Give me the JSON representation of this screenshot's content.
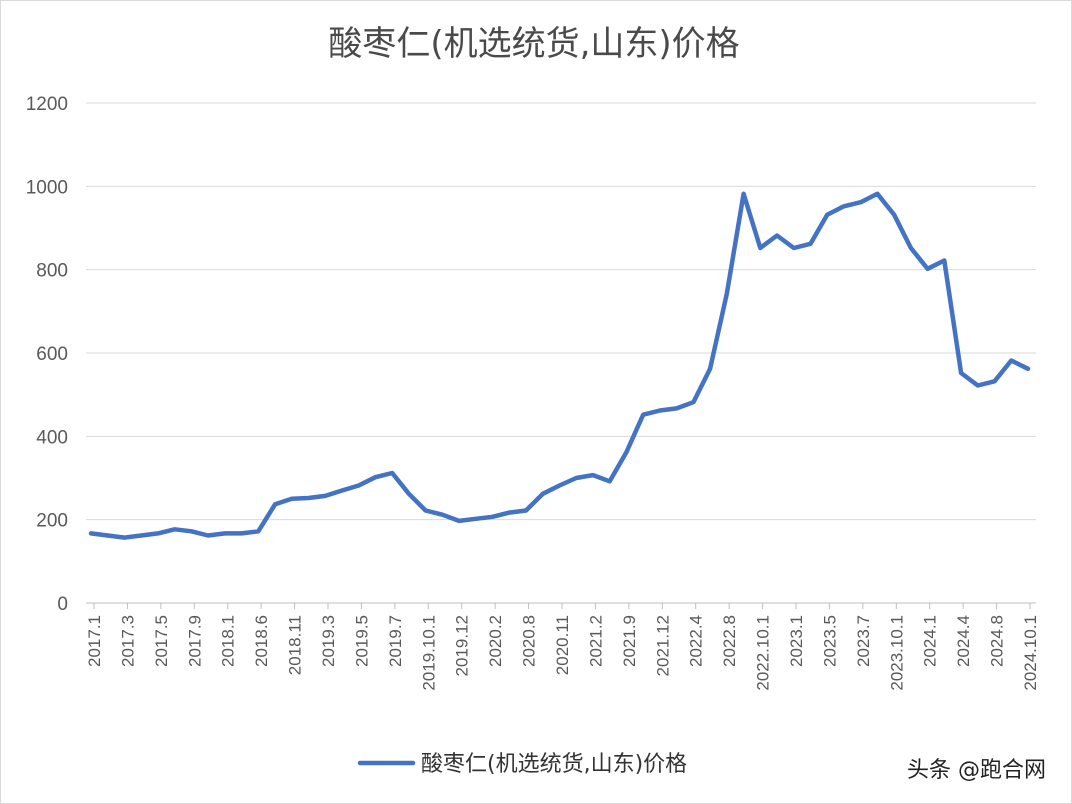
{
  "chart_data": {
    "type": "line",
    "title": "酸枣仁(机选统货,山东)价格",
    "ylim": [
      0,
      1200
    ],
    "yticks": [
      "0",
      "200",
      "400",
      "600",
      "800",
      "1000",
      "1200"
    ],
    "xtick_labels": [
      "2017.1",
      "2017.3",
      "2017.5",
      "2017.9",
      "2018.1",
      "2018.6",
      "2018.11",
      "2019.3",
      "2019.5",
      "2019.7",
      "2019.10.1",
      "2019.12",
      "2020.2",
      "2020.8",
      "2020.11",
      "2021.2",
      "2021.9",
      "2021.12",
      "2022.4",
      "2022.8",
      "2022.10.1",
      "2023.1",
      "2023.5",
      "2023.7",
      "2023.10.1",
      "2024.1",
      "2024.4",
      "2024.8",
      "2024.10.1"
    ],
    "grid": true,
    "legend_position": "bottom",
    "series": [
      {
        "name": "酸枣仁(机选统货,山东)价格",
        "color": "#4472C4",
        "values": [
          167,
          162,
          157,
          162,
          167,
          177,
          172,
          162,
          167,
          167,
          172,
          237,
          250,
          252,
          257,
          270,
          282,
          302,
          312,
          262,
          222,
          212,
          197,
          202,
          207,
          217,
          222,
          262,
          282,
          300,
          307,
          292,
          362,
          452,
          462,
          467,
          482,
          562,
          742,
          982,
          852,
          882,
          852,
          862,
          932,
          952,
          962,
          982,
          932,
          852,
          802,
          822,
          552,
          522,
          532,
          582,
          562
        ]
      }
    ]
  },
  "watermark": "头条 @跑合网"
}
